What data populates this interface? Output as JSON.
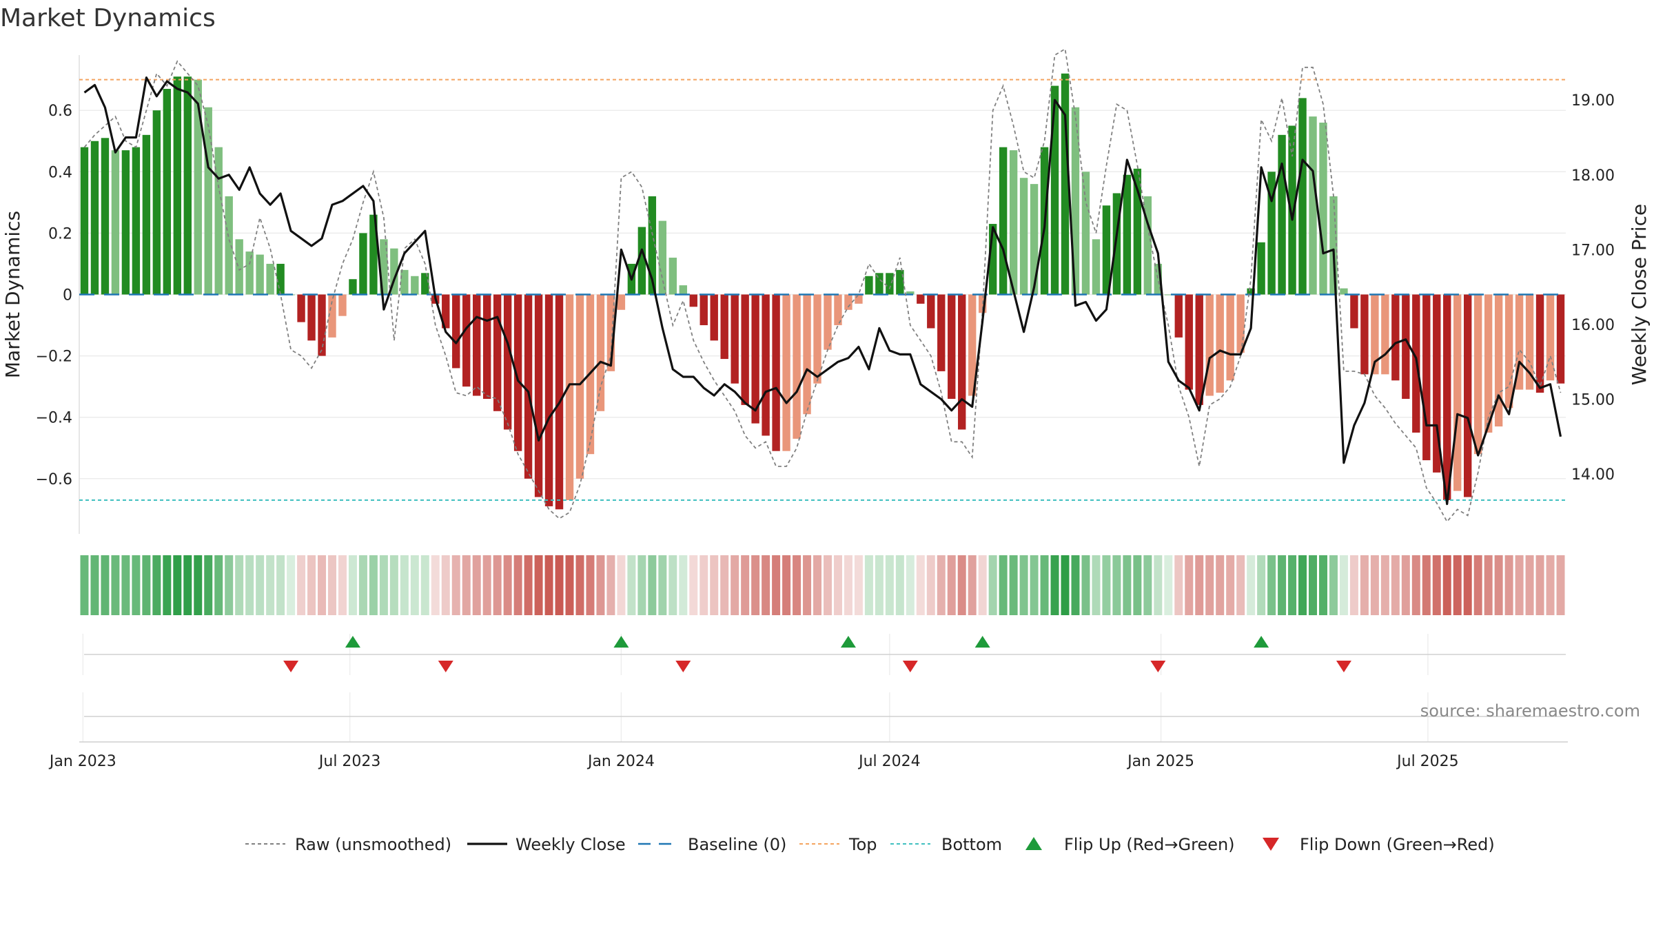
{
  "title": "Market Dynamics",
  "source": "source: sharemaestro.com",
  "colors": {
    "green_strong": "#228b22",
    "green_light": "#7fbf7f",
    "red_strong": "#b22222",
    "red_light": "#e9967a",
    "close_line": "#111111",
    "raw_line": "#808080",
    "baseline": "#1f77b4",
    "top_line": "#f4a460",
    "bottom_line": "#40c0c0",
    "flip_up": "#1e9a3a",
    "flip_down": "#d62728"
  },
  "chart_data": {
    "type": "bar",
    "x_start": "2023-01-02",
    "x_step_days": 7,
    "x_ticks": [
      {
        "date": "2023-01-01",
        "label": "Jan 2023"
      },
      {
        "date": "2023-07-01",
        "label": "Jul 2023"
      },
      {
        "date": "2024-01-01",
        "label": "Jan 2024"
      },
      {
        "date": "2024-07-01",
        "label": "Jul 2024"
      },
      {
        "date": "2025-01-01",
        "label": "Jan 2025"
      },
      {
        "date": "2025-07-01",
        "label": "Jul 2025"
      }
    ],
    "ylabel": "Market Dynamics",
    "ylabel_right": "Weekly Close Price",
    "ylim": [
      -0.78,
      0.78
    ],
    "ylim_right": [
      13.2,
      19.6
    ],
    "yticks": [
      {
        "v": 0.6,
        "label": "0.6"
      },
      {
        "v": 0.4,
        "label": "0.4"
      },
      {
        "v": 0.2,
        "label": "0.2"
      },
      {
        "v": 0,
        "label": "0"
      },
      {
        "v": -0.2,
        "label": "−0.2"
      },
      {
        "v": -0.4,
        "label": "−0.4"
      },
      {
        "v": -0.6,
        "label": "−0.6"
      }
    ],
    "yticks_right": [
      {
        "v": 19,
        "label": "19.00"
      },
      {
        "v": 18,
        "label": "18.00"
      },
      {
        "v": 17,
        "label": "17.00"
      },
      {
        "v": 16,
        "label": "16.00"
      },
      {
        "v": 15,
        "label": "15.00"
      },
      {
        "v": 14,
        "label": "14.00"
      }
    ],
    "top_level": 0.7,
    "bottom_level": -0.67,
    "baseline": 0,
    "grid": true,
    "dynamics": [
      0.48,
      0.5,
      0.51,
      0.47,
      0.47,
      0.48,
      0.52,
      0.6,
      0.67,
      0.71,
      0.71,
      0.7,
      0.61,
      0.48,
      0.32,
      0.18,
      0.14,
      0.13,
      0.1,
      0.1,
      0,
      -0.09,
      -0.15,
      -0.2,
      -0.14,
      -0.07,
      0.05,
      0.2,
      0.26,
      0.18,
      0.15,
      0.08,
      0.06,
      0.07,
      -0.03,
      -0.11,
      -0.24,
      -0.3,
      -0.33,
      -0.34,
      -0.38,
      -0.44,
      -0.51,
      -0.6,
      -0.66,
      -0.69,
      -0.7,
      -0.67,
      -0.6,
      -0.52,
      -0.38,
      -0.25,
      -0.05,
      0.1,
      0.22,
      0.32,
      0.24,
      0.12,
      0.03,
      -0.04,
      -0.1,
      -0.15,
      -0.21,
      -0.29,
      -0.36,
      -0.42,
      -0.46,
      -0.51,
      -0.51,
      -0.47,
      -0.39,
      -0.29,
      -0.18,
      -0.1,
      -0.05,
      -0.03,
      0.06,
      0.07,
      0.07,
      0.08,
      0.01,
      -0.03,
      -0.11,
      -0.25,
      -0.34,
      -0.44,
      -0.33,
      -0.06,
      0.23,
      0.48,
      0.47,
      0.38,
      0.36,
      0.48,
      0.68,
      0.72,
      0.61,
      0.4,
      0.18,
      0.29,
      0.33,
      0.39,
      0.41,
      0.32,
      0.1,
      0,
      -0.14,
      -0.31,
      -0.36,
      -0.33,
      -0.32,
      -0.28,
      -0.19,
      0.02,
      0.17,
      0.4,
      0.52,
      0.55,
      0.64,
      0.58,
      0.56,
      0.32,
      0.02,
      -0.11,
      -0.26,
      -0.26,
      -0.26,
      -0.28,
      -0.34,
      -0.45,
      -0.54,
      -0.58,
      -0.67,
      -0.64,
      -0.66,
      -0.52,
      -0.45,
      -0.43,
      -0.37,
      -0.31,
      -0.31,
      -0.32,
      -0.28,
      -0.29
    ],
    "raw": [
      0.48,
      0.52,
      0.55,
      0.58,
      0.5,
      0.48,
      0.6,
      0.72,
      0.68,
      0.76,
      0.72,
      0.68,
      0.55,
      0.35,
      0.18,
      0.08,
      0.1,
      0.25,
      0.15,
      0.0,
      -0.18,
      -0.2,
      -0.24,
      -0.18,
      -0.02,
      0.1,
      0.18,
      0.3,
      0.4,
      0.25,
      -0.15,
      0.15,
      0.18,
      0.1,
      -0.1,
      -0.2,
      -0.32,
      -0.33,
      -0.3,
      -0.33,
      -0.34,
      -0.42,
      -0.52,
      -0.58,
      -0.64,
      -0.7,
      -0.73,
      -0.71,
      -0.62,
      -0.48,
      -0.3,
      -0.2,
      0.38,
      0.4,
      0.35,
      0.2,
      0.05,
      -0.1,
      -0.02,
      -0.15,
      -0.22,
      -0.28,
      -0.33,
      -0.38,
      -0.46,
      -0.5,
      -0.48,
      -0.56,
      -0.56,
      -0.5,
      -0.38,
      -0.28,
      -0.18,
      -0.1,
      -0.04,
      0.0,
      0.1,
      0.05,
      0.02,
      0.12,
      -0.1,
      -0.15,
      -0.2,
      -0.32,
      -0.48,
      -0.48,
      -0.53,
      -0.05,
      0.6,
      0.68,
      0.55,
      0.4,
      0.38,
      0.5,
      0.78,
      0.8,
      0.58,
      0.3,
      0.2,
      0.42,
      0.62,
      0.6,
      0.42,
      0.22,
      0.05,
      -0.1,
      -0.3,
      -0.4,
      -0.56,
      -0.36,
      -0.34,
      -0.3,
      -0.2,
      0.05,
      0.57,
      0.5,
      0.64,
      0.45,
      0.74,
      0.74,
      0.62,
      0.32,
      -0.25,
      -0.25,
      -0.26,
      -0.33,
      -0.37,
      -0.42,
      -0.46,
      -0.5,
      -0.63,
      -0.68,
      -0.74,
      -0.7,
      -0.72,
      -0.58,
      -0.4,
      -0.32,
      -0.3,
      -0.18,
      -0.22,
      -0.3,
      -0.2,
      -0.32
    ],
    "close": [
      19.1,
      19.2,
      18.9,
      18.3,
      18.5,
      18.5,
      19.3,
      19.05,
      19.25,
      19.15,
      19.1,
      18.95,
      18.1,
      17.95,
      18.0,
      17.8,
      18.1,
      17.75,
      17.6,
      17.75,
      17.25,
      17.15,
      17.05,
      17.15,
      17.6,
      17.65,
      17.75,
      17.85,
      17.65,
      16.2,
      16.6,
      16.95,
      17.1,
      17.25,
      16.35,
      15.9,
      15.75,
      15.95,
      16.1,
      16.05,
      16.1,
      15.75,
      15.25,
      15.1,
      14.45,
      14.75,
      14.95,
      15.2,
      15.2,
      15.35,
      15.5,
      15.45,
      17.0,
      16.6,
      17.0,
      16.6,
      15.95,
      15.4,
      15.3,
      15.3,
      15.15,
      15.05,
      15.2,
      15.1,
      14.95,
      14.85,
      15.1,
      15.15,
      14.95,
      15.1,
      15.4,
      15.3,
      15.4,
      15.5,
      15.55,
      15.7,
      15.4,
      15.95,
      15.65,
      15.6,
      15.6,
      15.2,
      15.1,
      15.0,
      14.85,
      15.0,
      14.9,
      16.05,
      17.3,
      17.0,
      16.45,
      15.9,
      16.5,
      17.3,
      19.0,
      18.8,
      16.25,
      16.3,
      16.05,
      16.2,
      17.2,
      18.2,
      17.8,
      17.35,
      16.95,
      15.5,
      15.25,
      15.15,
      14.85,
      15.55,
      15.65,
      15.6,
      15.6,
      15.95,
      18.1,
      17.65,
      18.15,
      17.4,
      18.2,
      18.05,
      16.95,
      17.0,
      14.15,
      14.65,
      14.95,
      15.5,
      15.6,
      15.75,
      15.8,
      15.55,
      14.65,
      14.65,
      13.6,
      14.8,
      14.75,
      14.25,
      14.65,
      15.05,
      14.8,
      15.5,
      15.35,
      15.15,
      15.2,
      14.5
    ],
    "flips_up": [
      26,
      52,
      74,
      87,
      114
    ],
    "flips_down": [
      20,
      35,
      58,
      80,
      104,
      122
    ],
    "legend": [
      {
        "key": "raw",
        "label": "Raw (unsmoothed)"
      },
      {
        "key": "close",
        "label": "Weekly Close"
      },
      {
        "key": "baseline",
        "label": "Baseline (0)"
      },
      {
        "key": "top",
        "label": "Top"
      },
      {
        "key": "bottom",
        "label": "Bottom"
      },
      {
        "key": "flip_up",
        "label": "Flip Up (Red→Green)"
      },
      {
        "key": "flip_down",
        "label": "Flip Down (Green→Red)"
      }
    ],
    "legend_position": "bottom"
  }
}
